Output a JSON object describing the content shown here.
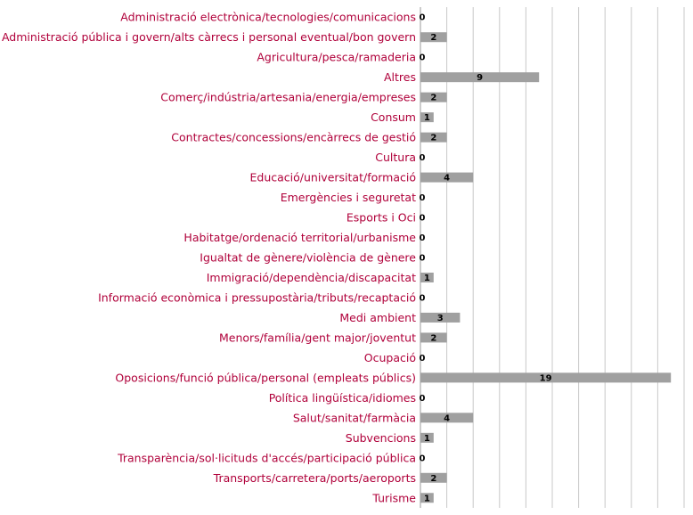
{
  "chart_data": {
    "type": "bar",
    "orientation": "horizontal",
    "title": "",
    "xlabel": "",
    "ylabel": "",
    "grid": true,
    "xlim": [
      0,
      19
    ],
    "colors": {
      "bar": "#a0a0a0",
      "category_label": "#b0003a",
      "gridline": "#c8c8c8",
      "value_label": "#000000"
    },
    "categories": [
      "Administració electrònica/tecnologies/comunicacions",
      "Administració pública i govern/alts càrrecs i personal eventual/bon govern",
      "Agricultura/pesca/ramaderia",
      "Altres",
      "Comerç/indústria/artesania/energia/empreses",
      "Consum",
      "Contractes/concessions/encàrrecs de gestió",
      "Cultura",
      "Educació/universitat/formació",
      "Emergències i seguretat",
      "Esports i Oci",
      "Habitatge/ordenació territorial/urbanisme",
      "Igualtat de gènere/violència de gènere",
      "Immigració/dependència/discapacitat",
      "Informació econòmica i pressupostària/tributs/recaptació",
      "Medi ambient",
      "Menors/família/gent major/joventut",
      "Ocupació",
      "Oposicions/funció pública/personal (empleats públics)",
      "Política lingüística/idiomes",
      "Salut/sanitat/farmàcia",
      "Subvencions",
      "Transparència/sol·licituds d'accés/participació pública",
      "Transports/carretera/ports/aeroports",
      "Turisme"
    ],
    "values": [
      0,
      2,
      0,
      9,
      2,
      1,
      2,
      0,
      4,
      0,
      0,
      0,
      0,
      1,
      0,
      3,
      2,
      0,
      19,
      0,
      4,
      1,
      0,
      2,
      1
    ]
  }
}
